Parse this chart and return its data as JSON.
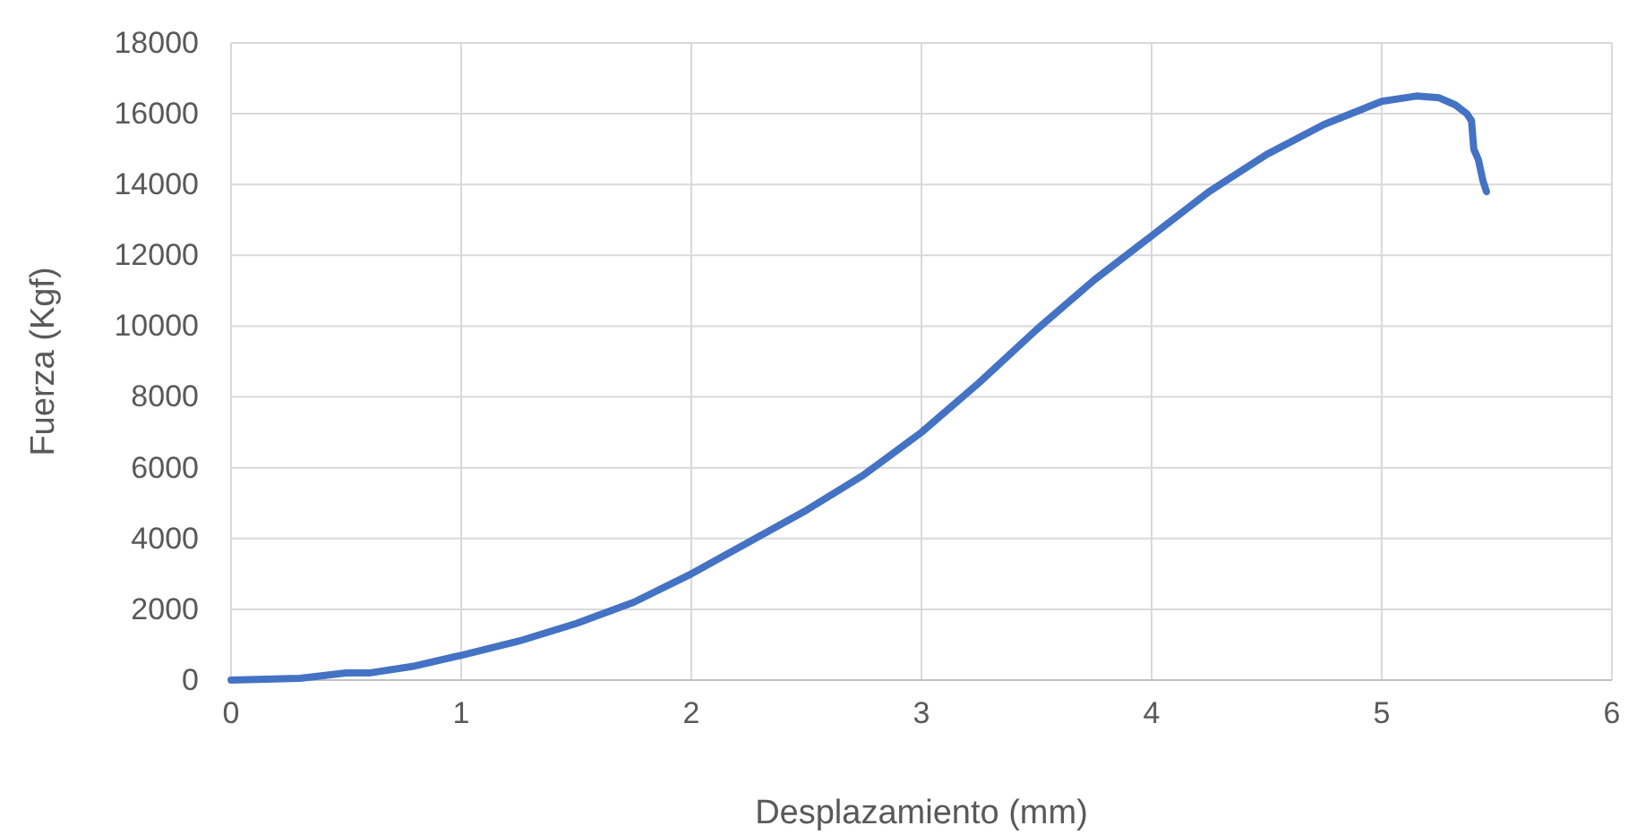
{
  "chart_data": {
    "type": "line",
    "xlabel": "Desplazamiento (mm)",
    "ylabel": "Fuerza (Kgf)",
    "xlim": [
      0,
      6
    ],
    "xticks": [
      0,
      1,
      2,
      3,
      4,
      5,
      6
    ],
    "ylim": [
      0,
      18000
    ],
    "yticks": [
      0,
      2000,
      4000,
      6000,
      8000,
      10000,
      12000,
      14000,
      16000,
      18000
    ],
    "grid": true,
    "marker": "none",
    "line_style": "solid",
    "series": [
      {
        "color": "#4472c4",
        "x": [
          0,
          0.3,
          0.5,
          0.6,
          0.8,
          1,
          1.25,
          1.5,
          1.75,
          2,
          2.25,
          2.5,
          2.75,
          3,
          3.25,
          3.5,
          3.75,
          4,
          4.25,
          4.5,
          4.75,
          5,
          5.15,
          5.25,
          5.32,
          5.37,
          5.39,
          5.4,
          5.42,
          5.44,
          5.455
        ],
        "values": [
          0,
          50,
          200,
          200,
          400,
          700,
          1100,
          1600,
          2200,
          3000,
          3900,
          4800,
          5800,
          7000,
          8400,
          9900,
          11300,
          12550,
          13800,
          14850,
          15700,
          16350,
          16500,
          16450,
          16250,
          16000,
          15800,
          15000,
          14700,
          14100,
          13800
        ]
      }
    ]
  }
}
